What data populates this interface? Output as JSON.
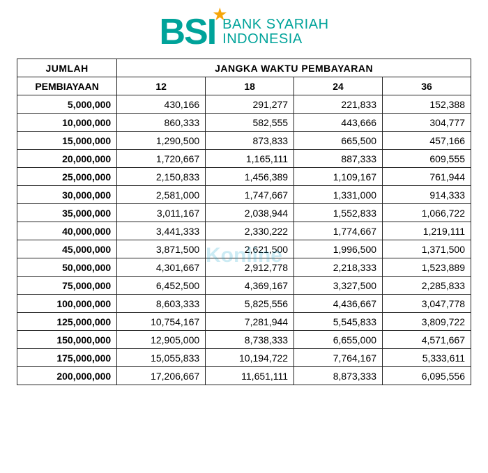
{
  "brand": {
    "mark": "BSI",
    "mark_color": "#00a39a",
    "star_color": "#f6a609",
    "text_line1": "BANK SYARIAH",
    "text_line2": "INDONESIA",
    "text_color": "#00a39a"
  },
  "watermark": {
    "text": "Konline",
    "color": "#1ca7d0"
  },
  "table": {
    "type": "table",
    "header_main_left": "JUMLAH",
    "header_main_right": "JANGKA WAKTU PEMBAYARAN",
    "header_sub_left": "PEMBIAYAAN",
    "term_columns": [
      "12",
      "18",
      "24",
      "36"
    ],
    "border_color": "#222222",
    "background_color": "#ffffff",
    "header_font_weight": 700,
    "amount_font_weight": 700,
    "cell_font_size": 14,
    "rows": [
      {
        "amount": "5,000,000",
        "values": [
          "430,166",
          "291,277",
          "221,833",
          "152,388"
        ]
      },
      {
        "amount": "10,000,000",
        "values": [
          "860,333",
          "582,555",
          "443,666",
          "304,777"
        ]
      },
      {
        "amount": "15,000,000",
        "values": [
          "1,290,500",
          "873,833",
          "665,500",
          "457,166"
        ]
      },
      {
        "amount": "20,000,000",
        "values": [
          "1,720,667",
          "1,165,111",
          "887,333",
          "609,555"
        ]
      },
      {
        "amount": "25,000,000",
        "values": [
          "2,150,833",
          "1,456,389",
          "1,109,167",
          "761,944"
        ]
      },
      {
        "amount": "30,000,000",
        "values": [
          "2,581,000",
          "1,747,667",
          "1,331,000",
          "914,333"
        ]
      },
      {
        "amount": "35,000,000",
        "values": [
          "3,011,167",
          "2,038,944",
          "1,552,833",
          "1,066,722"
        ]
      },
      {
        "amount": "40,000,000",
        "values": [
          "3,441,333",
          "2,330,222",
          "1,774,667",
          "1,219,111"
        ]
      },
      {
        "amount": "45,000,000",
        "values": [
          "3,871,500",
          "2,621,500",
          "1,996,500",
          "1,371,500"
        ]
      },
      {
        "amount": "50,000,000",
        "values": [
          "4,301,667",
          "2,912,778",
          "2,218,333",
          "1,523,889"
        ]
      },
      {
        "amount": "75,000,000",
        "values": [
          "6,452,500",
          "4,369,167",
          "3,327,500",
          "2,285,833"
        ]
      },
      {
        "amount": "100,000,000",
        "values": [
          "8,603,333",
          "5,825,556",
          "4,436,667",
          "3,047,778"
        ]
      },
      {
        "amount": "125,000,000",
        "values": [
          "10,754,167",
          "7,281,944",
          "5,545,833",
          "3,809,722"
        ]
      },
      {
        "amount": "150,000,000",
        "values": [
          "12,905,000",
          "8,738,333",
          "6,655,000",
          "4,571,667"
        ]
      },
      {
        "amount": "175,000,000",
        "values": [
          "15,055,833",
          "10,194,722",
          "7,764,167",
          "5,333,611"
        ]
      },
      {
        "amount": "200,000,000",
        "values": [
          "17,206,667",
          "11,651,111",
          "8,873,333",
          "6,095,556"
        ]
      }
    ]
  }
}
